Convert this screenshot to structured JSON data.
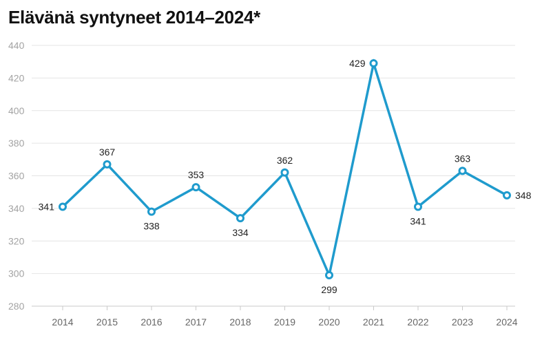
{
  "chart_data": {
    "type": "line",
    "title": "Elävänä syntyneet 2014–2024*",
    "xlabel": "",
    "ylabel": "",
    "x": [
      "2014",
      "2015",
      "2016",
      "2017",
      "2018",
      "2019",
      "2020",
      "2021",
      "2022",
      "2023",
      "2024"
    ],
    "series": [
      {
        "values": [
          341,
          367,
          338,
          353,
          334,
          362,
          299,
          429,
          341,
          363,
          348
        ],
        "color": "#1f9bcd"
      }
    ],
    "ylim": [
      280,
      440
    ],
    "yticks": [
      280,
      300,
      320,
      340,
      360,
      380,
      400,
      420,
      440
    ],
    "grid": true,
    "legend": "none"
  }
}
